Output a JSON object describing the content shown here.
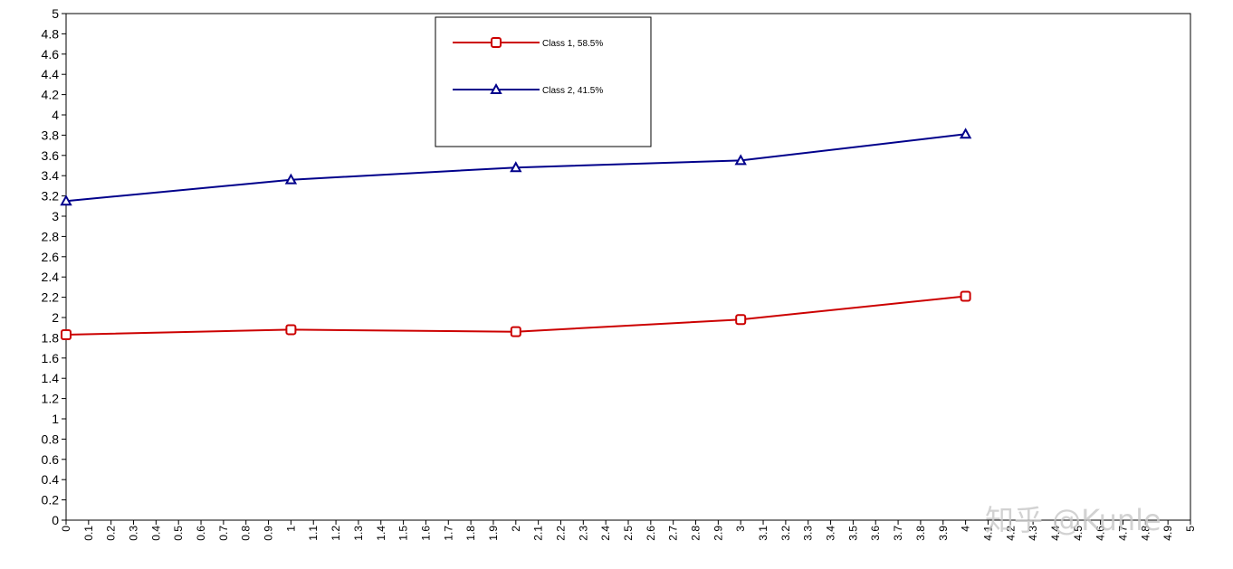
{
  "chart_data": {
    "type": "line",
    "x": [
      0,
      1,
      2,
      3,
      4
    ],
    "series": [
      {
        "name": "Class 1, 58.5%",
        "color": "#cc0000",
        "marker": "square",
        "values": [
          1.83,
          1.88,
          1.86,
          1.98,
          2.21
        ]
      },
      {
        "name": "Class 2, 41.5%",
        "color": "#00008b",
        "marker": "triangle",
        "values": [
          3.15,
          3.36,
          3.48,
          3.55,
          3.81
        ]
      }
    ],
    "xlim": [
      0,
      5
    ],
    "ylim": [
      0,
      5
    ],
    "x_tick_step": 0.1,
    "y_tick_step": 0.2,
    "x_tick_labels": [
      "0",
      "0.1",
      "0.2",
      "0.3",
      "0.4",
      "0.5",
      "0.6",
      "0.7",
      "0.8",
      "0.9",
      "1",
      "1.1",
      "1.2",
      "1.3",
      "1.4",
      "1.5",
      "1.6",
      "1.7",
      "1.8",
      "1.9",
      "2",
      "2.1",
      "2.2",
      "2.3",
      "2.4",
      "2.5",
      "2.6",
      "2.7",
      "2.8",
      "2.9",
      "3",
      "3.1",
      "3.2",
      "3.3",
      "3.4",
      "3.5",
      "3.6",
      "3.7",
      "3.8",
      "3.9",
      "4",
      "4.1",
      "4.2",
      "4.3",
      "4.4",
      "4.5",
      "4.6",
      "4.7",
      "4.8",
      "4.9",
      "5"
    ],
    "y_tick_labels": [
      "0",
      "0.2",
      "0.4",
      "0.6",
      "0.8",
      "1",
      "1.2",
      "1.4",
      "1.6",
      "1.8",
      "2",
      "2.2",
      "2.4",
      "2.6",
      "2.8",
      "3",
      "3.2",
      "3.4",
      "3.6",
      "3.8",
      "4",
      "4.2",
      "4.4",
      "4.6",
      "4.8",
      "5"
    ],
    "grid": false,
    "legend_position": "top-center",
    "title": "",
    "xlabel": "",
    "ylabel": ""
  },
  "watermark": "知乎 @Kunle"
}
